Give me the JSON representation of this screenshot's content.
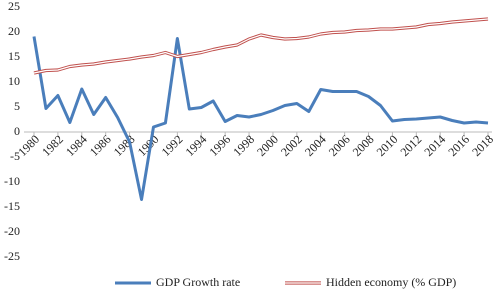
{
  "chart_data": {
    "type": "line",
    "x": [
      1980,
      1981,
      1982,
      1983,
      1984,
      1985,
      1986,
      1987,
      1988,
      1989,
      1990,
      1991,
      1992,
      1993,
      1994,
      1995,
      1996,
      1997,
      1998,
      1999,
      2000,
      2001,
      2002,
      2003,
      2004,
      2005,
      2006,
      2007,
      2008,
      2009,
      2010,
      2011,
      2012,
      2013,
      2014,
      2015,
      2016,
      2017,
      2018
    ],
    "series": [
      {
        "name": "GDP Growth rate",
        "color": "#4a7ebb",
        "line_style": "solid",
        "values": [
          19.1,
          4.7,
          7.3,
          1.9,
          8.6,
          3.5,
          6.9,
          2.9,
          -2.0,
          -13.5,
          1.0,
          1.8,
          18.7,
          4.6,
          4.9,
          6.2,
          2.1,
          3.3,
          3.0,
          3.5,
          4.3,
          5.3,
          5.7,
          4.1,
          8.5,
          8.1,
          8.1,
          8.1,
          7.1,
          5.3,
          2.2,
          2.5,
          2.6,
          2.8,
          3.0,
          2.3,
          1.8,
          2.0,
          1.8
        ]
      },
      {
        "name": "Hidden economy (% GDP)",
        "color": "#c0504d",
        "line_style": "double",
        "values": [
          11.8,
          12.3,
          12.4,
          13.1,
          13.4,
          13.6,
          14.0,
          14.3,
          14.6,
          15.0,
          15.3,
          15.9,
          15.1,
          15.5,
          15.9,
          16.5,
          17.0,
          17.4,
          18.6,
          19.4,
          18.9,
          18.6,
          18.7,
          19.0,
          19.6,
          19.9,
          20.0,
          20.3,
          20.4,
          20.6,
          20.6,
          20.8,
          21.0,
          21.5,
          21.7,
          22.0,
          22.2,
          22.4,
          22.6
        ]
      }
    ],
    "xlim": [
      1980,
      2018
    ],
    "xticks": [
      1980,
      1982,
      1984,
      1986,
      1988,
      1990,
      1992,
      1994,
      1996,
      1998,
      2000,
      2002,
      2004,
      2006,
      2008,
      2010,
      2012,
      2014,
      2016,
      2018
    ],
    "ylim": [
      -25,
      25
    ],
    "yticks": [
      -25,
      -20,
      -15,
      -10,
      -5,
      0,
      5,
      10,
      15,
      20,
      25
    ],
    "legend": "bottom"
  }
}
